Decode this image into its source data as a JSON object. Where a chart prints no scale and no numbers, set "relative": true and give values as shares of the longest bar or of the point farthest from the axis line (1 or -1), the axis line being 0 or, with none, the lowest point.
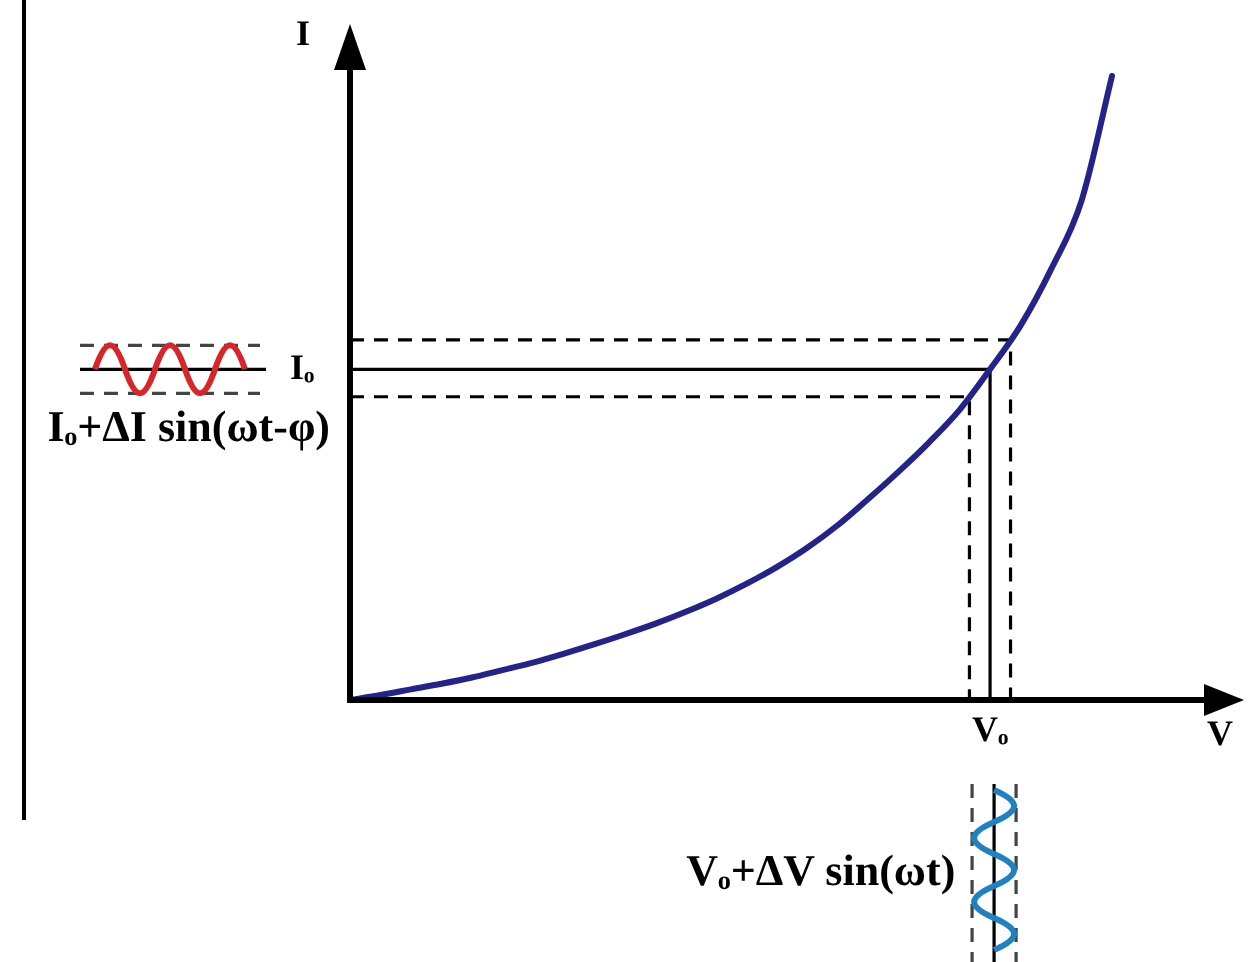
{
  "chart_data": {
    "type": "line",
    "xlabel": "V",
    "ylabel": "I",
    "relative": true,
    "tick_labels": false,
    "marker": "none",
    "line_style": "solid",
    "categories": [
      null,
      null,
      null,
      null,
      null,
      null,
      null,
      null,
      null,
      null,
      null,
      null,
      null,
      null,
      null,
      null,
      null,
      null,
      null,
      null,
      null,
      null,
      null,
      null,
      null,
      null
    ],
    "series": [
      {
        "color": "#23238a",
        "values": [
          0,
          0.008,
          0.017,
          0.026,
          0.036,
          0.048,
          0.06,
          0.074,
          0.089,
          0.105,
          0.122,
          0.141,
          0.162,
          0.186,
          0.213,
          0.244,
          0.28,
          0.322,
          0.366,
          0.413,
          0.465,
          0.53,
          0.6,
          0.69,
          0.8,
          1
        ]
      }
    ],
    "ref_lines": [
      {
        "axis": "y",
        "value": 0.53,
        "label": "Iₒ",
        "color": "#000000",
        "line_style": "solid"
      },
      {
        "axis": "y",
        "value": 0.577,
        "color": "#000000",
        "line_style": "dashed"
      },
      {
        "axis": "y",
        "value": 0.486,
        "color": "#000000",
        "line_style": "dashed"
      }
    ],
    "annotations": [
      "Iₒ+ΔI sin(ωt-φ)",
      "Vₒ",
      "Vₒ+ΔV sin(ωt)"
    ]
  }
}
